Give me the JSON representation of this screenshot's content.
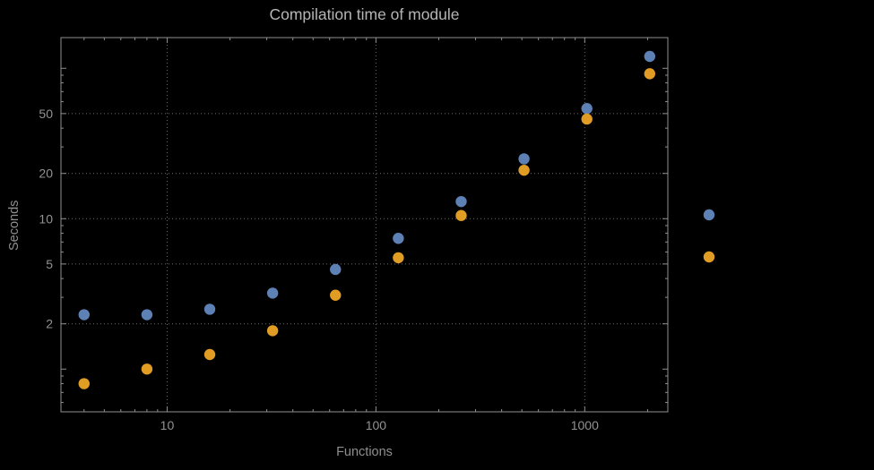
{
  "title": "Compilation time of module",
  "axes": {
    "x_label": "Functions",
    "y_label": "Seconds"
  },
  "colors": {
    "background": "#000000",
    "frame": "#8f8f8f",
    "grid": "#6e6e6e",
    "tick_text": "#929292",
    "label_text": "#8f8f8f",
    "title_text": "#b5b5b5",
    "series_blue": "#5e81b5",
    "series_orange": "#e19c24"
  },
  "chart_data": {
    "type": "scatter",
    "title": "Compilation time of module",
    "xlabel": "Functions",
    "ylabel": "Seconds",
    "x_scale": "log",
    "y_scale": "log",
    "grid": "dotted",
    "xlim": [
      3.1,
      2500
    ],
    "ylim": [
      0.52,
      160
    ],
    "x_ticks": [
      10,
      100,
      1000
    ],
    "y_ticks": [
      2,
      5,
      10,
      20,
      50
    ],
    "x": [
      4,
      8,
      16,
      32,
      64,
      128,
      256,
      512,
      1024,
      2048
    ],
    "series": [
      {
        "name": "blue",
        "color": "#5e81b5",
        "values": [
          2.3,
          2.3,
          2.5,
          3.2,
          4.6,
          7.4,
          13,
          25,
          54,
          120
        ]
      },
      {
        "name": "orange",
        "color": "#e19c24",
        "values": [
          0.8,
          1.0,
          1.25,
          1.8,
          3.1,
          5.5,
          10.5,
          21,
          46,
          92
        ]
      }
    ],
    "legend": {
      "position": "right",
      "markers": [
        {
          "name": "legend-marker-blue",
          "color": "#5e81b5"
        },
        {
          "name": "legend-marker-orange",
          "color": "#e19c24"
        }
      ]
    }
  }
}
